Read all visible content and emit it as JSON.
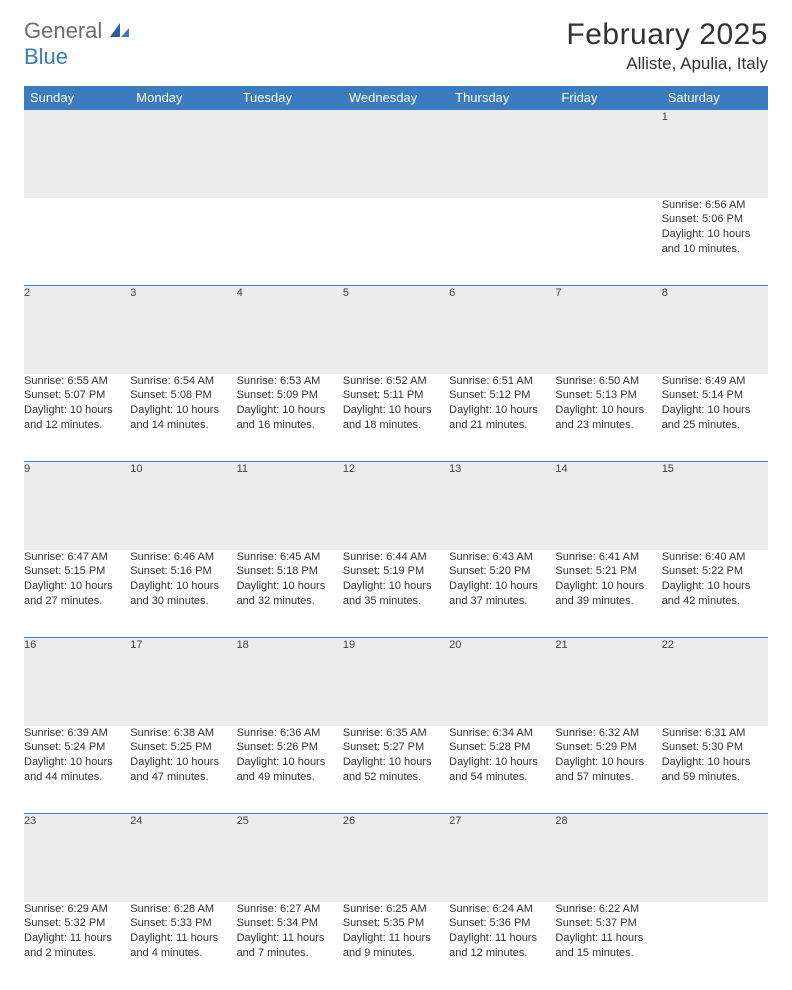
{
  "logo": {
    "word1": "General",
    "word2": "Blue"
  },
  "title": "February 2025",
  "location": "Alliste, Apulia, Italy",
  "colors": {
    "header_bg": "#3b7bbf",
    "header_text": "#ffffff",
    "dayrow_bg": "#ececec",
    "border": "#3b7bbf",
    "logo_grey": "#6e6e6e",
    "logo_blue": "#3b7bbf"
  },
  "weekdays": [
    "Sunday",
    "Monday",
    "Tuesday",
    "Wednesday",
    "Thursday",
    "Friday",
    "Saturday"
  ],
  "weeks": [
    [
      null,
      null,
      null,
      null,
      null,
      null,
      {
        "n": "1",
        "sunrise": "Sunrise: 6:56 AM",
        "sunset": "Sunset: 5:06 PM",
        "daylight": "Daylight: 10 hours and 10 minutes."
      }
    ],
    [
      {
        "n": "2",
        "sunrise": "Sunrise: 6:55 AM",
        "sunset": "Sunset: 5:07 PM",
        "daylight": "Daylight: 10 hours and 12 minutes."
      },
      {
        "n": "3",
        "sunrise": "Sunrise: 6:54 AM",
        "sunset": "Sunset: 5:08 PM",
        "daylight": "Daylight: 10 hours and 14 minutes."
      },
      {
        "n": "4",
        "sunrise": "Sunrise: 6:53 AM",
        "sunset": "Sunset: 5:09 PM",
        "daylight": "Daylight: 10 hours and 16 minutes."
      },
      {
        "n": "5",
        "sunrise": "Sunrise: 6:52 AM",
        "sunset": "Sunset: 5:11 PM",
        "daylight": "Daylight: 10 hours and 18 minutes."
      },
      {
        "n": "6",
        "sunrise": "Sunrise: 6:51 AM",
        "sunset": "Sunset: 5:12 PM",
        "daylight": "Daylight: 10 hours and 21 minutes."
      },
      {
        "n": "7",
        "sunrise": "Sunrise: 6:50 AM",
        "sunset": "Sunset: 5:13 PM",
        "daylight": "Daylight: 10 hours and 23 minutes."
      },
      {
        "n": "8",
        "sunrise": "Sunrise: 6:49 AM",
        "sunset": "Sunset: 5:14 PM",
        "daylight": "Daylight: 10 hours and 25 minutes."
      }
    ],
    [
      {
        "n": "9",
        "sunrise": "Sunrise: 6:47 AM",
        "sunset": "Sunset: 5:15 PM",
        "daylight": "Daylight: 10 hours and 27 minutes."
      },
      {
        "n": "10",
        "sunrise": "Sunrise: 6:46 AM",
        "sunset": "Sunset: 5:16 PM",
        "daylight": "Daylight: 10 hours and 30 minutes."
      },
      {
        "n": "11",
        "sunrise": "Sunrise: 6:45 AM",
        "sunset": "Sunset: 5:18 PM",
        "daylight": "Daylight: 10 hours and 32 minutes."
      },
      {
        "n": "12",
        "sunrise": "Sunrise: 6:44 AM",
        "sunset": "Sunset: 5:19 PM",
        "daylight": "Daylight: 10 hours and 35 minutes."
      },
      {
        "n": "13",
        "sunrise": "Sunrise: 6:43 AM",
        "sunset": "Sunset: 5:20 PM",
        "daylight": "Daylight: 10 hours and 37 minutes."
      },
      {
        "n": "14",
        "sunrise": "Sunrise: 6:41 AM",
        "sunset": "Sunset: 5:21 PM",
        "daylight": "Daylight: 10 hours and 39 minutes."
      },
      {
        "n": "15",
        "sunrise": "Sunrise: 6:40 AM",
        "sunset": "Sunset: 5:22 PM",
        "daylight": "Daylight: 10 hours and 42 minutes."
      }
    ],
    [
      {
        "n": "16",
        "sunrise": "Sunrise: 6:39 AM",
        "sunset": "Sunset: 5:24 PM",
        "daylight": "Daylight: 10 hours and 44 minutes."
      },
      {
        "n": "17",
        "sunrise": "Sunrise: 6:38 AM",
        "sunset": "Sunset: 5:25 PM",
        "daylight": "Daylight: 10 hours and 47 minutes."
      },
      {
        "n": "18",
        "sunrise": "Sunrise: 6:36 AM",
        "sunset": "Sunset: 5:26 PM",
        "daylight": "Daylight: 10 hours and 49 minutes."
      },
      {
        "n": "19",
        "sunrise": "Sunrise: 6:35 AM",
        "sunset": "Sunset: 5:27 PM",
        "daylight": "Daylight: 10 hours and 52 minutes."
      },
      {
        "n": "20",
        "sunrise": "Sunrise: 6:34 AM",
        "sunset": "Sunset: 5:28 PM",
        "daylight": "Daylight: 10 hours and 54 minutes."
      },
      {
        "n": "21",
        "sunrise": "Sunrise: 6:32 AM",
        "sunset": "Sunset: 5:29 PM",
        "daylight": "Daylight: 10 hours and 57 minutes."
      },
      {
        "n": "22",
        "sunrise": "Sunrise: 6:31 AM",
        "sunset": "Sunset: 5:30 PM",
        "daylight": "Daylight: 10 hours and 59 minutes."
      }
    ],
    [
      {
        "n": "23",
        "sunrise": "Sunrise: 6:29 AM",
        "sunset": "Sunset: 5:32 PM",
        "daylight": "Daylight: 11 hours and 2 minutes."
      },
      {
        "n": "24",
        "sunrise": "Sunrise: 6:28 AM",
        "sunset": "Sunset: 5:33 PM",
        "daylight": "Daylight: 11 hours and 4 minutes."
      },
      {
        "n": "25",
        "sunrise": "Sunrise: 6:27 AM",
        "sunset": "Sunset: 5:34 PM",
        "daylight": "Daylight: 11 hours and 7 minutes."
      },
      {
        "n": "26",
        "sunrise": "Sunrise: 6:25 AM",
        "sunset": "Sunset: 5:35 PM",
        "daylight": "Daylight: 11 hours and 9 minutes."
      },
      {
        "n": "27",
        "sunrise": "Sunrise: 6:24 AM",
        "sunset": "Sunset: 5:36 PM",
        "daylight": "Daylight: 11 hours and 12 minutes."
      },
      {
        "n": "28",
        "sunrise": "Sunrise: 6:22 AM",
        "sunset": "Sunset: 5:37 PM",
        "daylight": "Daylight: 11 hours and 15 minutes."
      },
      null
    ]
  ]
}
